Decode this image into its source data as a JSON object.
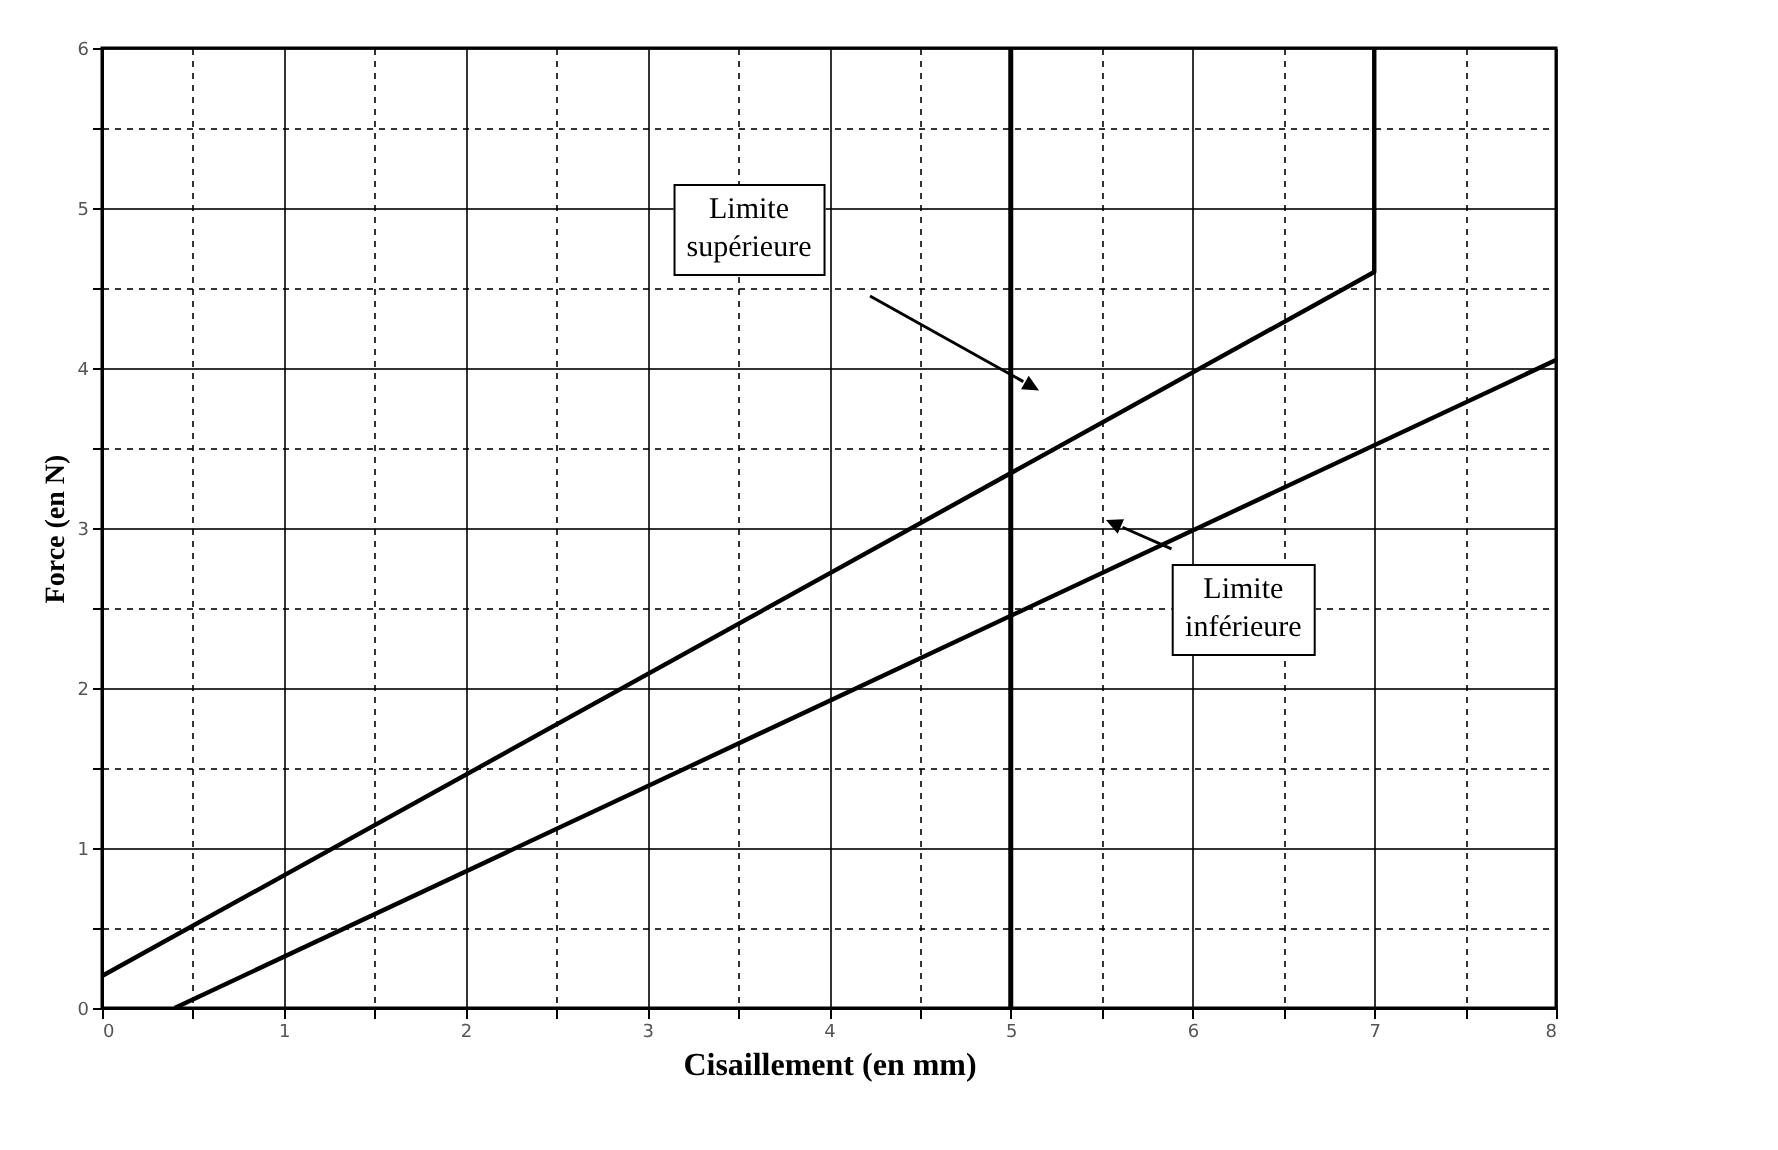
{
  "chart_data": {
    "type": "line",
    "xlabel": "Cisaillement (en mm)",
    "ylabel": "Force (en N)",
    "xlim": [
      0,
      8
    ],
    "ylim": [
      0,
      6
    ],
    "xticks": [
      0,
      {
        "value": 0.5,
        "label": null
      },
      1,
      {
        "value": 1.5,
        "label": null
      },
      2,
      {
        "value": 2.5,
        "label": null
      },
      3,
      {
        "value": 3.5,
        "label": null
      },
      4,
      {
        "value": 4.5,
        "label": null
      },
      5,
      {
        "value": 5.5,
        "label": null
      },
      6,
      {
        "value": 6.5,
        "label": null
      },
      7,
      {
        "value": 7.5,
        "label": null
      },
      8
    ],
    "yticks": [
      0,
      {
        "value": 0.5,
        "label": null
      },
      1,
      {
        "value": 1.5,
        "label": null
      },
      2,
      {
        "value": 2.5,
        "label": null
      },
      3,
      {
        "value": 3.5,
        "label": null
      },
      4,
      {
        "value": 4.5,
        "label": null
      },
      5,
      {
        "value": 5.5,
        "label": null
      },
      6
    ],
    "grid": true,
    "legend": false,
    "marker": "none",
    "line_style": "solid",
    "series": [
      {
        "color": "#000000",
        "x": [
          0,
          7,
          7
        ],
        "values": [
          0.2,
          4.6,
          6
        ]
      },
      {
        "color": "#000000",
        "x": [
          0.4,
          8
        ],
        "values": [
          0,
          4.05
        ]
      }
    ],
    "ref_lines": [
      {
        "axis": "x",
        "value": 5,
        "color": "#000000"
      }
    ],
    "annotations": [
      "Limite supérieure",
      "Limite inférieure"
    ]
  }
}
